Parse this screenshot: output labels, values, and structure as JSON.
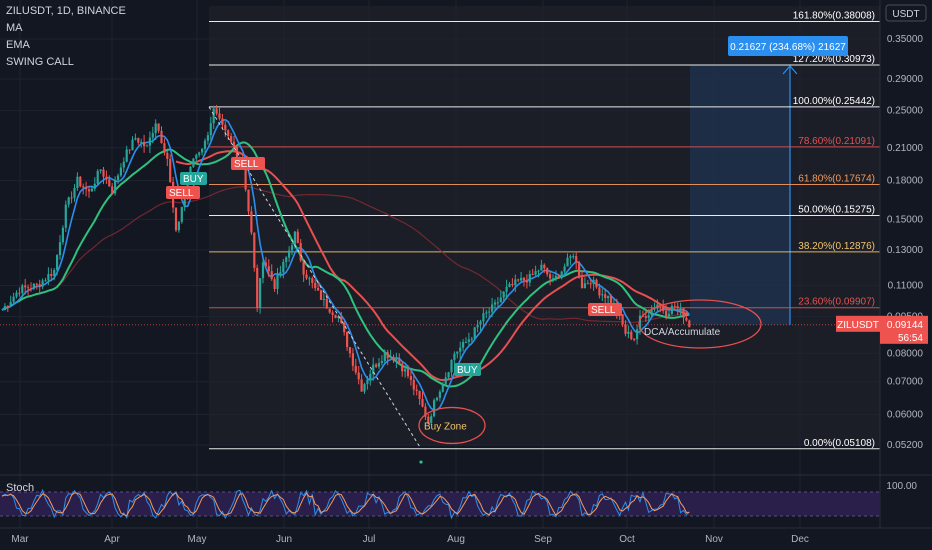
{
  "header": {
    "symbol_line": "ZILUSDT, 1D, BINANCE",
    "indicators": [
      "MA",
      "EMA",
      "SWING CALL"
    ],
    "currency": "USDT",
    "stoch_label": "Stoch",
    "stoch_level": "100.00"
  },
  "price_tag": {
    "symbol": "ZILUSDT",
    "price": "0.09144",
    "countdown": "56:54",
    "value": 0.09144
  },
  "measure_box": {
    "label": "0.21627 (234.68%) 21627"
  },
  "chart_data": {
    "type": "candlestick",
    "x_axis": {
      "labels": [
        "Mar",
        "Apr",
        "May",
        "Jun",
        "Jul",
        "Aug",
        "Sep",
        "Oct",
        "Nov",
        "Dec"
      ]
    },
    "y_axis": {
      "scale": "log",
      "labels": [
        "0.35000",
        "0.29000",
        "0.25000",
        "0.21000",
        "0.18000",
        "0.15000",
        "0.13000",
        "0.11000",
        "0.09500",
        "0.08000",
        "0.07000",
        "0.06000",
        "0.05200"
      ],
      "values": [
        0.35,
        0.29,
        0.25,
        0.21,
        0.18,
        0.15,
        0.13,
        0.11,
        0.095,
        0.08,
        0.07,
        0.06,
        0.052
      ]
    },
    "fib_levels": [
      {
        "label": "161.80%(0.38008)",
        "ratio": 1.618,
        "price": 0.38008,
        "color": "#ffffff"
      },
      {
        "label": "127.20%(0.30973)",
        "ratio": 1.272,
        "price": 0.30973,
        "color": "#ffffff"
      },
      {
        "label": "100.00%(0.25442)",
        "ratio": 1.0,
        "price": 0.25442,
        "color": "#ffffff"
      },
      {
        "label": "78.60%(0.21091)",
        "ratio": 0.786,
        "price": 0.21091,
        "color": "#e05252"
      },
      {
        "label": "61.80%(0.17674)",
        "ratio": 0.618,
        "price": 0.17674,
        "color": "#f59a5b"
      },
      {
        "label": "50.00%(0.15275)",
        "ratio": 0.5,
        "price": 0.15275,
        "color": "#ffffff"
      },
      {
        "label": "38.20%(0.12876)",
        "ratio": 0.382,
        "price": 0.12876,
        "color": "#f2c46b"
      },
      {
        "label": "23.60%(0.09907)",
        "ratio": 0.236,
        "price": 0.09907,
        "color": "#e05252"
      },
      {
        "label": "0.00%(0.05108)",
        "ratio": 0.0,
        "price": 0.05108,
        "color": "#ffffff"
      }
    ],
    "signals": [
      {
        "label": "BUY",
        "type": "buy"
      },
      {
        "label": "SELL",
        "type": "sell"
      },
      {
        "label": "SELL",
        "type": "sell"
      },
      {
        "label": "BUY",
        "type": "buy"
      },
      {
        "label": "SELL",
        "type": "sell"
      }
    ],
    "annotations": [
      "Buy Zone",
      "DCA/Accumulate"
    ],
    "swing_high": 0.25442,
    "swing_low": 0.05108,
    "target": 0.30973,
    "current_price": 0.09144,
    "colors": {
      "up": "#26a69a",
      "down": "#ef5350",
      "ma_fast": "#2a8fef",
      "ma_slow": "#2ec27e",
      "ma_red": "#e84f4f"
    }
  }
}
